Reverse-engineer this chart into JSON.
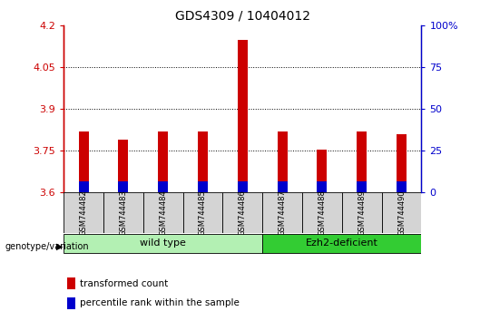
{
  "title": "GDS4309 / 10404012",
  "samples": [
    "GSM744482",
    "GSM744483",
    "GSM744484",
    "GSM744485",
    "GSM744486",
    "GSM744487",
    "GSM744488",
    "GSM744489",
    "GSM744490"
  ],
  "transformed_count": [
    3.82,
    3.79,
    3.82,
    3.82,
    4.15,
    3.82,
    3.755,
    3.82,
    3.81
  ],
  "percentile_rank_pct": [
    6.5,
    6.5,
    7.0,
    7.0,
    7.0,
    6.5,
    6.5,
    6.5,
    6.5
  ],
  "ylim_left": [
    3.6,
    4.2
  ],
  "ylim_right": [
    0,
    100
  ],
  "right_ticks": [
    0,
    25,
    50,
    75,
    100
  ],
  "right_tick_labels": [
    "0",
    "25",
    "50",
    "75",
    "100%"
  ],
  "left_ticks": [
    3.6,
    3.75,
    3.9,
    4.05,
    4.2
  ],
  "dotted_lines": [
    3.75,
    3.9,
    4.05
  ],
  "bar_bottom": 3.6,
  "red_color": "#cc0000",
  "blue_color": "#0000cc",
  "groups": [
    {
      "label": "wild type",
      "start": 0,
      "end": 5,
      "color": "#b3f0b3"
    },
    {
      "label": "Ezh2-deficient",
      "start": 5,
      "end": 9,
      "color": "#33cc33"
    }
  ],
  "group_label_prefix": "genotype/variation",
  "legend_items": [
    {
      "label": "transformed count",
      "color": "#cc0000"
    },
    {
      "label": "percentile rank within the sample",
      "color": "#0000cc"
    }
  ],
  "bar_width": 0.25,
  "title_fontsize": 10,
  "tick_fontsize": 8,
  "label_fontsize": 8,
  "sample_fontsize": 6,
  "group_fontsize": 8
}
